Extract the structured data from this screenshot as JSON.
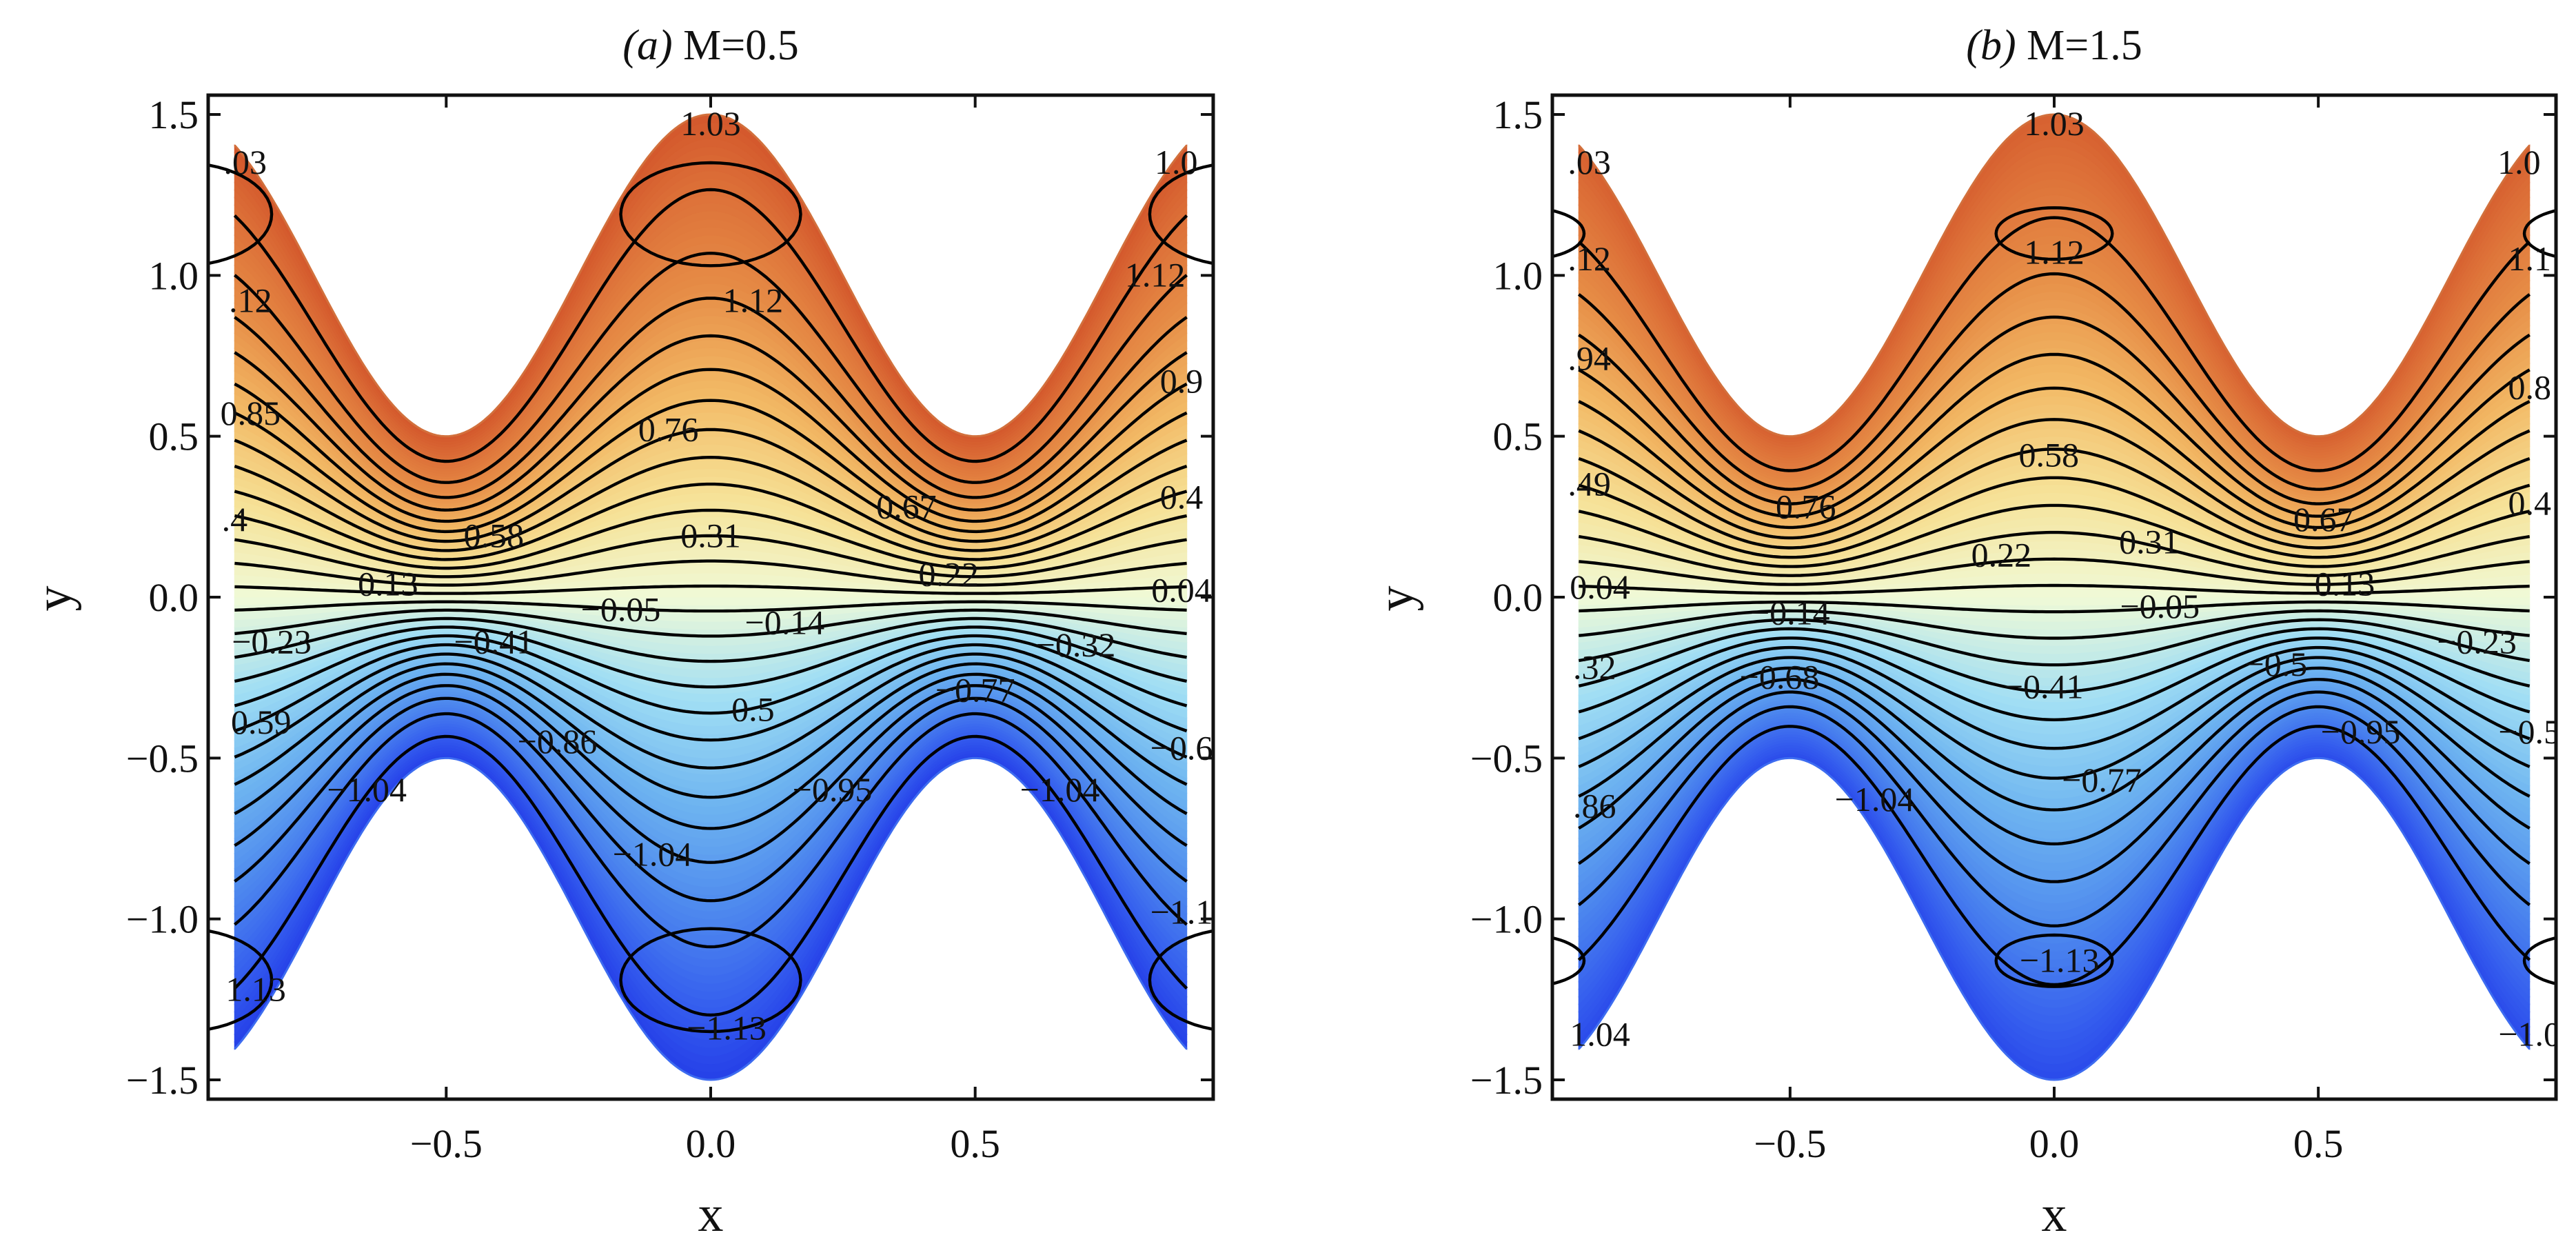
{
  "chart_data": [
    {
      "type": "contour",
      "title_letter": "(a)",
      "title_text": " M=0.5",
      "xlabel": "x",
      "ylabel": "y",
      "xlim": [
        -0.95,
        0.95
      ],
      "ylim": [
        -1.56,
        1.56
      ],
      "xticks": [
        {
          "v": -0.5,
          "label": "−0.5"
        },
        {
          "v": 0,
          "label": "0.0"
        },
        {
          "v": 0.5,
          "label": "0.5"
        }
      ],
      "yticks": [
        {
          "v": 1.5,
          "label": "1.5"
        },
        {
          "v": 1.0,
          "label": "1.0"
        },
        {
          "v": 0.5,
          "label": "0.5"
        },
        {
          "v": 0.0,
          "label": "0.0"
        },
        {
          "v": -0.5,
          "label": "−0.5"
        },
        {
          "v": -1.0,
          "label": "−1.0"
        },
        {
          "v": -1.5,
          "label": "−1.5"
        }
      ],
      "wall": {
        "mean": 1.0,
        "amplitude": 0.5,
        "period": 1.0
      },
      "x_extent": 0.9,
      "field_max": 1.16,
      "core_peak": 1.24,
      "levels": [
        -1.13,
        -1.04,
        -0.95,
        -0.86,
        -0.77,
        -0.68,
        -0.59,
        -0.5,
        -0.41,
        -0.32,
        -0.23,
        -0.14,
        -0.05,
        0.04,
        0.13,
        0.22,
        0.31,
        0.4,
        0.49,
        0.58,
        0.67,
        0.76,
        0.85,
        0.94,
        1.03,
        1.12
      ],
      "labels": [
        {
          "text": "1.03",
          "x": 0.0,
          "y": 1.47
        },
        {
          "text": ".03",
          "x": -0.88,
          "y": 1.35
        },
        {
          "text": "1.0",
          "x": 0.88,
          "y": 1.35
        },
        {
          "text": "1.12",
          "x": 0.08,
          "y": 0.92
        },
        {
          "text": ".12",
          "x": -0.87,
          "y": 0.92
        },
        {
          "text": "1.12",
          "x": 0.84,
          "y": 1.0
        },
        {
          "text": "0.85",
          "x": -0.87,
          "y": 0.57
        },
        {
          "text": "0.9",
          "x": 0.89,
          "y": 0.67
        },
        {
          "text": "0.76",
          "x": -0.08,
          "y": 0.52
        },
        {
          "text": "0.67",
          "x": 0.37,
          "y": 0.28
        },
        {
          "text": ".4",
          "x": -0.9,
          "y": 0.24
        },
        {
          "text": "0.4",
          "x": 0.89,
          "y": 0.31
        },
        {
          "text": "0.58",
          "x": -0.41,
          "y": 0.19
        },
        {
          "text": "0.31",
          "x": 0.0,
          "y": 0.19
        },
        {
          "text": "0.22",
          "x": 0.45,
          "y": 0.07
        },
        {
          "text": "0.13",
          "x": -0.61,
          "y": 0.04
        },
        {
          "text": "0.04",
          "x": 0.89,
          "y": 0.02
        },
        {
          "text": "−0.05",
          "x": -0.17,
          "y": -0.04
        },
        {
          "text": "−0.14",
          "x": 0.14,
          "y": -0.08
        },
        {
          "text": "−0.23",
          "x": -0.83,
          "y": -0.14
        },
        {
          "text": "−0.41",
          "x": -0.41,
          "y": -0.14
        },
        {
          "text": "−0.32",
          "x": 0.69,
          "y": -0.15
        },
        {
          "text": "−0.77",
          "x": 0.5,
          "y": -0.29
        },
        {
          "text": "0.5",
          "x": 0.08,
          "y": -0.35
        },
        {
          "text": "0.59",
          "x": -0.85,
          "y": -0.39
        },
        {
          "text": "−0.86",
          "x": -0.29,
          "y": -0.45
        },
        {
          "text": "−0.6",
          "x": 0.89,
          "y": -0.47
        },
        {
          "text": "−0.95",
          "x": 0.23,
          "y": -0.6
        },
        {
          "text": "−1.04",
          "x": -0.65,
          "y": -0.6
        },
        {
          "text": "−1.04",
          "x": 0.66,
          "y": -0.6
        },
        {
          "text": "−1.04",
          "x": -0.11,
          "y": -0.8
        },
        {
          "text": "−1.1",
          "x": 0.89,
          "y": -0.98
        },
        {
          "text": "1.13",
          "x": -0.86,
          "y": -1.22
        },
        {
          "text": "−1.13",
          "x": 0.03,
          "y": -1.34
        }
      ]
    },
    {
      "type": "contour",
      "title_letter": "(b)",
      "title_text": " M=1.5",
      "xlabel": "x",
      "ylabel": "y",
      "xlim": [
        -0.95,
        0.95
      ],
      "ylim": [
        -1.56,
        1.56
      ],
      "xticks": [
        {
          "v": -0.5,
          "label": "−0.5"
        },
        {
          "v": 0,
          "label": "0.0"
        },
        {
          "v": 0.5,
          "label": "0.5"
        }
      ],
      "yticks": [
        {
          "v": 1.5,
          "label": "1.5"
        },
        {
          "v": 1.0,
          "label": "1.0"
        },
        {
          "v": 0.5,
          "label": "0.5"
        },
        {
          "v": 0.0,
          "label": "0.0"
        },
        {
          "v": -0.5,
          "label": "−0.5"
        },
        {
          "v": -1.0,
          "label": "−1.0"
        },
        {
          "v": -1.5,
          "label": "−1.5"
        }
      ],
      "wall": {
        "mean": 1.0,
        "amplitude": 0.5,
        "period": 1.0
      },
      "x_extent": 0.9,
      "field_max": 1.1,
      "core_peak": 1.155,
      "levels": [
        -1.13,
        -1.04,
        -0.95,
        -0.86,
        -0.77,
        -0.68,
        -0.59,
        -0.5,
        -0.41,
        -0.32,
        -0.23,
        -0.14,
        -0.05,
        0.04,
        0.13,
        0.22,
        0.31,
        0.4,
        0.49,
        0.58,
        0.67,
        0.76,
        0.85,
        0.94,
        1.03,
        1.12
      ],
      "labels": [
        {
          "text": "1.03",
          "x": 0.0,
          "y": 1.47
        },
        {
          "text": ".03",
          "x": -0.88,
          "y": 1.35
        },
        {
          "text": "1.0",
          "x": 0.88,
          "y": 1.35
        },
        {
          "text": "1.12",
          "x": 0.0,
          "y": 1.07
        },
        {
          "text": ".12",
          "x": -0.88,
          "y": 1.05
        },
        {
          "text": "1.1",
          "x": 0.9,
          "y": 1.05
        },
        {
          "text": ".94",
          "x": -0.88,
          "y": 0.74
        },
        {
          "text": "0.8",
          "x": 0.9,
          "y": 0.65
        },
        {
          "text": "0.58",
          "x": -0.01,
          "y": 0.44
        },
        {
          "text": ".49",
          "x": -0.88,
          "y": 0.35
        },
        {
          "text": "0.4",
          "x": 0.9,
          "y": 0.29
        },
        {
          "text": "0.76",
          "x": -0.47,
          "y": 0.28
        },
        {
          "text": "0.67",
          "x": 0.51,
          "y": 0.24
        },
        {
          "text": "0.31",
          "x": 0.18,
          "y": 0.17
        },
        {
          "text": "0.22",
          "x": -0.1,
          "y": 0.13
        },
        {
          "text": "0.13",
          "x": 0.55,
          "y": 0.04
        },
        {
          "text": "0.04",
          "x": -0.86,
          "y": 0.03
        },
        {
          "text": "−0.14",
          "x": -0.5,
          "y": -0.05
        },
        {
          "text": "−0.05",
          "x": 0.2,
          "y": -0.03
        },
        {
          "text": "−0.23",
          "x": 0.8,
          "y": -0.14
        },
        {
          "text": ".32",
          "x": -0.87,
          "y": -0.22
        },
        {
          "text": "−0.5",
          "x": 0.42,
          "y": -0.21
        },
        {
          "text": "−0.68",
          "x": -0.52,
          "y": -0.25
        },
        {
          "text": "−0.41",
          "x": -0.02,
          "y": -0.28
        },
        {
          "text": "−0.5",
          "x": 0.9,
          "y": -0.42
        },
        {
          "text": "−0.95",
          "x": 0.58,
          "y": -0.42
        },
        {
          "text": "−0.77",
          "x": 0.09,
          "y": -0.57
        },
        {
          "text": "−1.04",
          "x": -0.34,
          "y": -0.63
        },
        {
          "text": ".86",
          "x": -0.87,
          "y": -0.65
        },
        {
          "text": "−1.13",
          "x": 0.01,
          "y": -1.13
        },
        {
          "text": "1.04",
          "x": -0.86,
          "y": -1.36
        },
        {
          "text": "−1.0",
          "x": 0.9,
          "y": -1.36
        }
      ]
    }
  ]
}
